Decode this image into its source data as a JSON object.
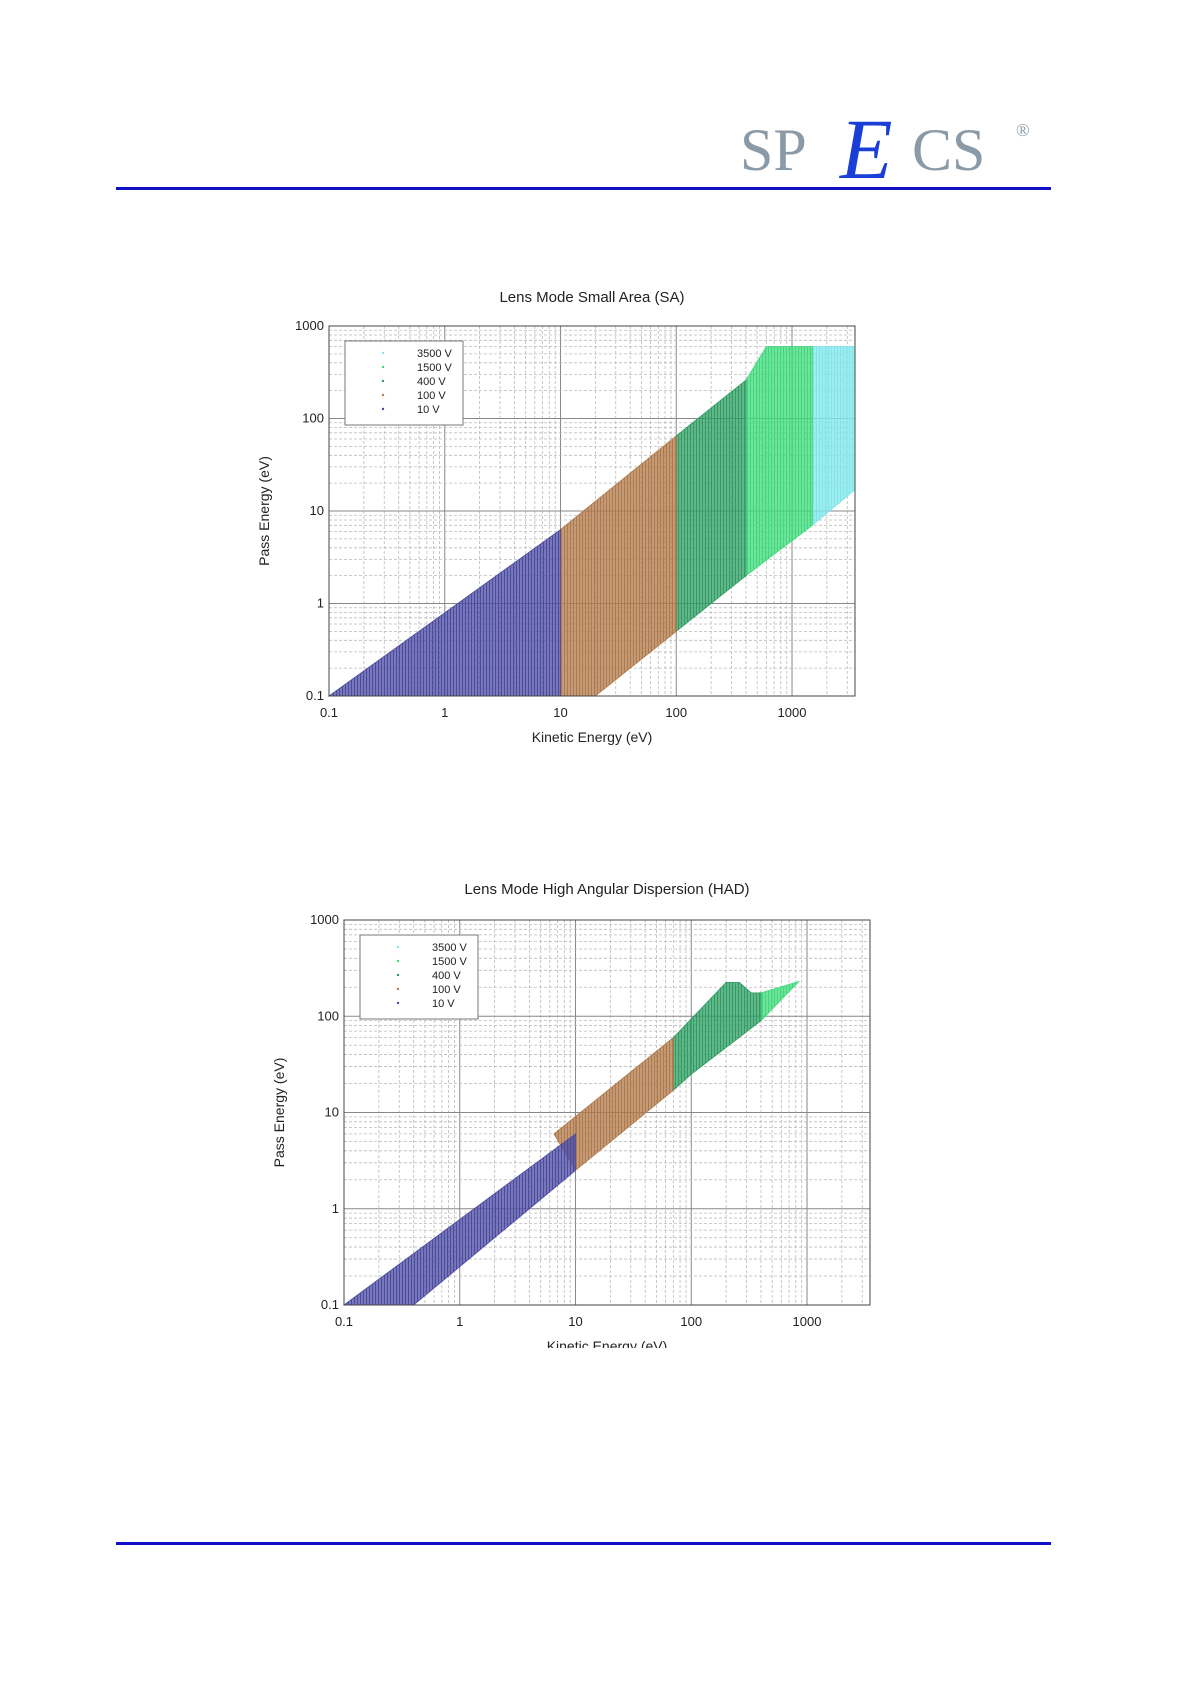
{
  "logo": {
    "left": "SP",
    "middle": "E",
    "right": "CS",
    "mark": "®"
  },
  "colors": {
    "rule": "#1010c8",
    "series": {
      "3500 V": "#7ee6ea",
      "1500 V": "#3ed97a",
      "400 V": "#2e9c63",
      "100 V": "#b0794a",
      "10 V": "#4a4aa0"
    }
  },
  "chart_data": [
    {
      "type": "area",
      "title": "Lens Mode Small Area (SA)",
      "xlabel": "Kinetic Energy (eV)",
      "ylabel": "Pass Energy (eV)",
      "xscale": "log",
      "yscale": "log",
      "xlim": [
        0.1,
        3500
      ],
      "ylim": [
        0.1,
        1000
      ],
      "xticks": [
        "0.1",
        "1",
        "10",
        "100",
        "1000"
      ],
      "yticks": [
        "0.1",
        "1",
        "10",
        "100",
        "1000"
      ],
      "grid": true,
      "legend_position": "top-left",
      "series": [
        {
          "name": "3500 V",
          "color": "#7ee6ea",
          "polygon": [
            [
              1500,
              600
            ],
            [
              3500,
              600
            ],
            [
              3500,
              17
            ],
            [
              1500,
              7
            ]
          ]
        },
        {
          "name": "1500 V",
          "color": "#3ed97a",
          "polygon": [
            [
              400,
              260
            ],
            [
              600,
              600
            ],
            [
              1500,
              600
            ],
            [
              1500,
              7
            ],
            [
              400,
              2
            ]
          ]
        },
        {
          "name": "400 V",
          "color": "#2e9c63",
          "polygon": [
            [
              100,
              65
            ],
            [
              400,
              260
            ],
            [
              400,
              2
            ],
            [
              100,
              0.5
            ]
          ]
        },
        {
          "name": "100 V",
          "color": "#b0794a",
          "polygon": [
            [
              10,
              6.3
            ],
            [
              100,
              65
            ],
            [
              100,
              0.5
            ],
            [
              20,
              0.1
            ],
            [
              10,
              0.1
            ]
          ]
        },
        {
          "name": "10 V",
          "color": "#4a4aa0",
          "polygon": [
            [
              0.1,
              0.1
            ],
            [
              10,
              6.3
            ],
            [
              10,
              0.1
            ]
          ]
        }
      ]
    },
    {
      "type": "area",
      "title": "Lens Mode High Angular Dispersion (HAD)",
      "xlabel": "Kinetic Energy (eV)",
      "ylabel": "Pass Energy (eV)",
      "xscale": "log",
      "yscale": "log",
      "xlim": [
        0.1,
        3500
      ],
      "ylim": [
        0.1,
        1000
      ],
      "xticks": [
        "0.1",
        "1",
        "10",
        "100",
        "1000"
      ],
      "yticks": [
        "0.1",
        "1",
        "10",
        "100",
        "1000"
      ],
      "grid": true,
      "legend_position": "top-left",
      "series": [
        {
          "name": "3500 V",
          "color": "#7ee6ea",
          "polygon": []
        },
        {
          "name": "1500 V",
          "color": "#3ed97a",
          "polygon": [
            [
              400,
              175
            ],
            [
              850,
              230
            ],
            [
              400,
              90
            ]
          ]
        },
        {
          "name": "400 V",
          "color": "#2e9c63",
          "polygon": [
            [
              70,
              60
            ],
            [
              200,
              225
            ],
            [
              260,
              225
            ],
            [
              330,
              175
            ],
            [
              400,
              175
            ],
            [
              400,
              90
            ],
            [
              100,
              25
            ],
            [
              70,
              17
            ]
          ]
        },
        {
          "name": "100 V",
          "color": "#b0794a",
          "polygon": [
            [
              6.5,
              6
            ],
            [
              70,
              60
            ],
            [
              70,
              17
            ],
            [
              10,
              2.5
            ]
          ]
        },
        {
          "name": "10 V",
          "color": "#4a4aa0",
          "polygon": [
            [
              0.1,
              0.1
            ],
            [
              10,
              6
            ],
            [
              10,
              2.5
            ],
            [
              0.4,
              0.1
            ]
          ]
        }
      ]
    }
  ]
}
